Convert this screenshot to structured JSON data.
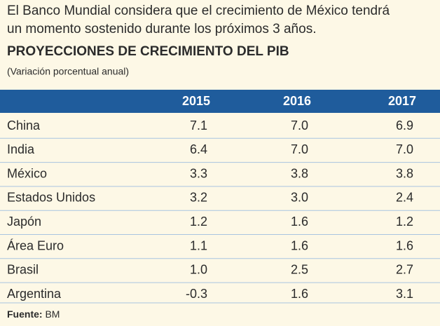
{
  "intro": [
    "El Banco Mundial considera que el crecimiento de México tendrá",
    "un momento sostenido durante los próximos 3 años."
  ],
  "title": "PROYECCIONES DE CRECIMIENTO DEL PIB",
  "subtitle": "(Variación porcentual anual)",
  "table": {
    "header": [
      "2015",
      "2016",
      "2017"
    ],
    "rows": [
      [
        "China",
        "7.1",
        "7.0",
        "6.9"
      ],
      [
        "India",
        "6.4",
        "7.0",
        "7.0"
      ],
      [
        "México",
        "3.3",
        "3.8",
        "3.8"
      ],
      [
        "Estados Unidos",
        "3.2",
        "3.0",
        "2.4"
      ],
      [
        "Japón",
        "1.2",
        "1.6",
        "1.2"
      ],
      [
        "Área Euro",
        "1.1",
        "1.6",
        "1.6"
      ],
      [
        "Brasil",
        "1.0",
        "2.5",
        "2.7"
      ],
      [
        "Argentina",
        "-0.3",
        "1.6",
        "3.1"
      ]
    ]
  },
  "source": {
    "label": "Fuente:",
    "value": "BM"
  }
}
